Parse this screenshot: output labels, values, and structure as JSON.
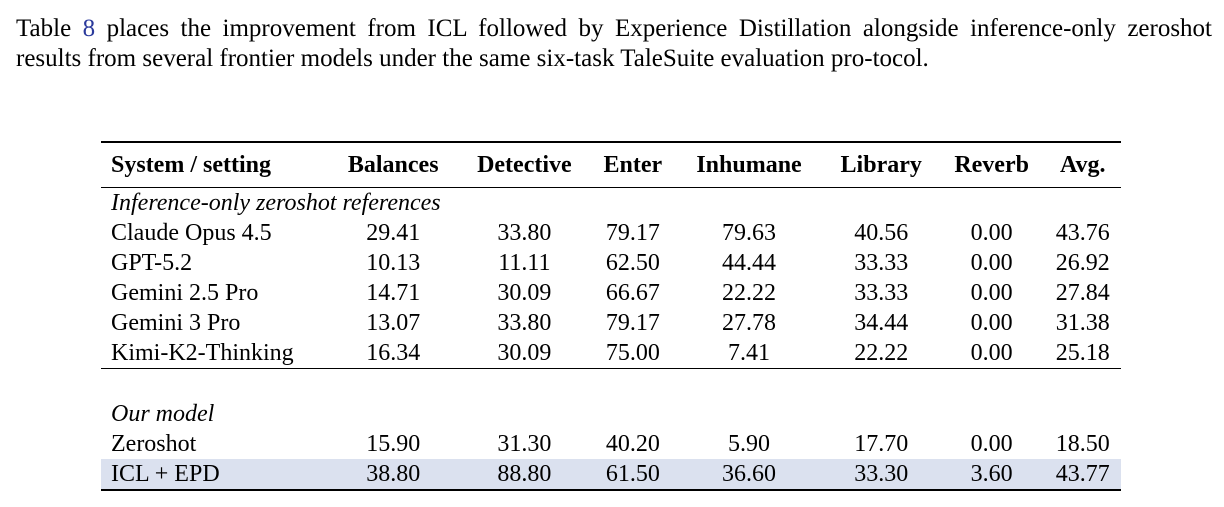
{
  "paragraph": {
    "before_ref": "Table ",
    "ref": "8",
    "after_ref": " places the improvement from ICL followed by Experience Distillation alongside inference-only zeroshot results from several frontier models under the same six-task TaleSuite evaluation pro-tocol."
  },
  "table": {
    "headers": [
      "System / setting",
      "Balances",
      "Detective",
      "Enter",
      "Inhumane",
      "Library",
      "Reverb",
      "Avg."
    ],
    "group1_label": "Inference-only zeroshot references",
    "group1_rows": [
      [
        "Claude Opus 4.5",
        "29.41",
        "33.80",
        "79.17",
        "79.63",
        "40.56",
        "0.00",
        "43.76"
      ],
      [
        "GPT-5.2",
        "10.13",
        "11.11",
        "62.50",
        "44.44",
        "33.33",
        "0.00",
        "26.92"
      ],
      [
        "Gemini 2.5 Pro",
        "14.71",
        "30.09",
        "66.67",
        "22.22",
        "33.33",
        "0.00",
        "27.84"
      ],
      [
        "Gemini 3 Pro",
        "13.07",
        "33.80",
        "79.17",
        "27.78",
        "34.44",
        "0.00",
        "31.38"
      ],
      [
        "Kimi-K2-Thinking",
        "16.34",
        "30.09",
        "75.00",
        "7.41",
        "22.22",
        "0.00",
        "25.18"
      ]
    ],
    "group2_label": "Our model",
    "group2_rows": [
      [
        "Zeroshot",
        "15.90",
        "31.30",
        "40.20",
        "5.90",
        "17.70",
        "0.00",
        "18.50"
      ],
      [
        "ICL + EPD",
        "38.80",
        "88.80",
        "61.50",
        "36.60",
        "33.30",
        "3.60",
        "43.77"
      ]
    ],
    "highlight_color": "#dbe1ef"
  }
}
